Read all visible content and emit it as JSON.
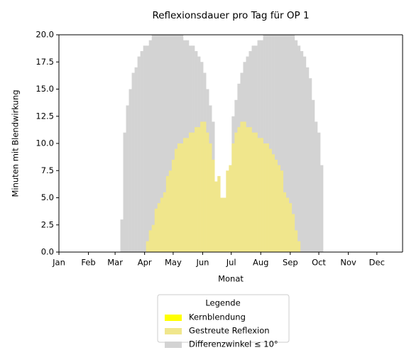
{
  "chart_data": {
    "type": "bar",
    "title": "Reflexionsdauer pro Tag für OP 1",
    "xlabel": "Monat",
    "ylabel": "Minuten mit Blendwirkung",
    "legend_title": "Legende",
    "legend": "lower center",
    "x": [
      63,
      66,
      69,
      72,
      75,
      78,
      81,
      84,
      87,
      90,
      93,
      96,
      99,
      102,
      105,
      108,
      111,
      114,
      117,
      120,
      123,
      126,
      129,
      132,
      135,
      138,
      141,
      144,
      147,
      150,
      153,
      156,
      159,
      162,
      165,
      168,
      171,
      174,
      177,
      180,
      183,
      186,
      189,
      192,
      195,
      198,
      201,
      204,
      207,
      210,
      213,
      216,
      219,
      222,
      225,
      228,
      231,
      234,
      237,
      240,
      243,
      246,
      249,
      252,
      255,
      258,
      261,
      264,
      267,
      270,
      273,
      276,
      279
    ],
    "series": [
      {
        "name": "Kernblendung",
        "color": "#ffff00",
        "values": [
          0,
          0,
          0,
          0,
          0,
          0,
          0,
          0,
          0,
          0,
          0,
          0,
          0,
          0,
          0,
          0,
          0,
          0,
          0,
          0,
          0,
          0,
          0,
          0,
          0,
          0,
          0,
          0,
          0,
          0,
          0,
          0,
          0,
          0,
          0,
          0,
          0,
          0,
          0,
          0,
          0,
          0,
          0,
          0,
          0,
          0,
          0,
          0,
          0,
          0,
          0,
          0,
          0,
          0,
          0,
          0,
          0,
          0,
          0,
          0,
          0,
          0,
          0,
          0,
          0,
          0,
          0,
          0,
          0,
          0,
          0,
          0,
          0
        ]
      },
      {
        "name": "Gestreute Reflexion",
        "color": "#f0e68c",
        "values": [
          0,
          0,
          0,
          0,
          0,
          0,
          0,
          0,
          0,
          0,
          1,
          2,
          2.5,
          4,
          4.5,
          5,
          5.5,
          7,
          7.5,
          8.5,
          9.5,
          10,
          10,
          10.5,
          10.5,
          11,
          11,
          11.5,
          11.5,
          12,
          12,
          11,
          10,
          8.5,
          6.5,
          7,
          5,
          5,
          7.5,
          8,
          10,
          11,
          11.5,
          12,
          12,
          11.5,
          11.5,
          11,
          11,
          10.5,
          10.5,
          10,
          10,
          9.5,
          9,
          8.5,
          8,
          7.5,
          5.5,
          5,
          4.5,
          3.5,
          2,
          1,
          0,
          0,
          0,
          0,
          0,
          0,
          0,
          0,
          0
        ]
      },
      {
        "name": "Differenzwinkel ≤ 10°",
        "color": "#d3d3d3",
        "values": [
          0,
          3,
          11,
          13.5,
          15,
          16.5,
          17,
          18,
          18.5,
          19,
          19,
          19.5,
          20,
          20,
          20,
          20,
          20,
          20,
          20,
          20,
          20,
          20,
          20,
          19.5,
          19.5,
          19,
          19,
          18.5,
          18,
          17.5,
          16.5,
          15,
          13.5,
          12,
          0,
          0,
          0,
          0,
          0,
          0,
          12.5,
          14,
          15.5,
          16.5,
          17.5,
          18,
          18.5,
          19,
          19,
          19.5,
          19.5,
          20,
          20,
          20,
          20,
          20,
          20,
          20,
          20,
          20,
          20,
          20,
          19.5,
          19,
          18.5,
          18,
          17,
          16,
          14,
          12,
          11,
          8,
          0
        ]
      }
    ],
    "xlim": [
      0,
      361
    ],
    "xticks": [
      {
        "value": 0,
        "label": "Jan"
      },
      {
        "value": 31,
        "label": "Feb"
      },
      {
        "value": 59,
        "label": "Mar"
      },
      {
        "value": 90,
        "label": "Apr"
      },
      {
        "value": 120,
        "label": "May"
      },
      {
        "value": 151,
        "label": "Jun"
      },
      {
        "value": 181,
        "label": "Jul"
      },
      {
        "value": 212,
        "label": "Aug"
      },
      {
        "value": 243,
        "label": "Sep"
      },
      {
        "value": 273,
        "label": "Oct"
      },
      {
        "value": 304,
        "label": "Nov"
      },
      {
        "value": 334,
        "label": "Dec"
      }
    ],
    "ylim": [
      0,
      20
    ],
    "yticks": [
      {
        "value": 0,
        "label": "0.0"
      },
      2.5,
      {
        "value": 5,
        "label": "5.0"
      },
      7.5,
      {
        "value": 10,
        "label": "10.0"
      },
      12.5,
      {
        "value": 15,
        "label": "15.0"
      },
      17.5,
      {
        "value": 20,
        "label": "20.0"
      }
    ],
    "grid": false
  }
}
